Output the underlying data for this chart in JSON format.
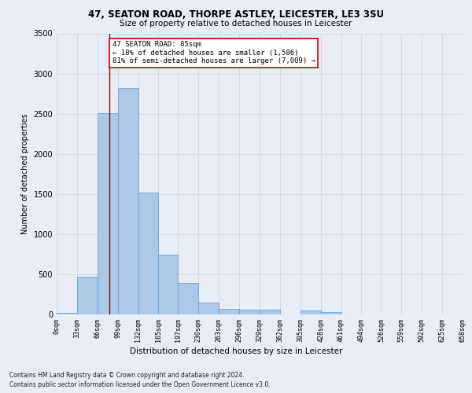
{
  "title_line1": "47, SEATON ROAD, THORPE ASTLEY, LEICESTER, LE3 3SU",
  "title_line2": "Size of property relative to detached houses in Leicester",
  "xlabel": "Distribution of detached houses by size in Leicester",
  "ylabel": "Number of detached properties",
  "footer_line1": "Contains HM Land Registry data © Crown copyright and database right 2024.",
  "footer_line2": "Contains public sector information licensed under the Open Government Licence v3.0.",
  "annotation_line1": "47 SEATON ROAD: 85sqm",
  "annotation_line2": "← 18% of detached houses are smaller (1,586)",
  "annotation_line3": "81% of semi-detached houses are larger (7,009) →",
  "bar_edges": [
    0,
    33,
    66,
    99,
    132,
    165,
    197,
    230,
    263,
    296,
    329,
    362,
    395,
    428,
    461,
    494,
    526,
    559,
    592,
    625,
    658
  ],
  "bar_heights": [
    20,
    470,
    2510,
    2820,
    1520,
    740,
    395,
    145,
    70,
    55,
    55,
    0,
    45,
    25,
    0,
    0,
    0,
    0,
    0,
    0
  ],
  "bar_color": "#adc8e6",
  "bar_edge_color": "#5b9bd5",
  "grid_color": "#d0d8e8",
  "bg_color": "#e8edf5",
  "vline_x": 85,
  "vline_color": "#8b0000",
  "ylim": [
    0,
    3500
  ],
  "yticks": [
    0,
    500,
    1000,
    1500,
    2000,
    2500,
    3000,
    3500
  ],
  "annotation_box_edge_color": "#cc0000",
  "annotation_box_facecolor": "#ffffff",
  "title1_fontsize": 8.5,
  "title2_fontsize": 7.5,
  "ylabel_fontsize": 7,
  "xlabel_fontsize": 7.5,
  "ytick_fontsize": 7,
  "xtick_fontsize": 6,
  "footer_fontsize": 5.5,
  "annot_fontsize": 6.5
}
